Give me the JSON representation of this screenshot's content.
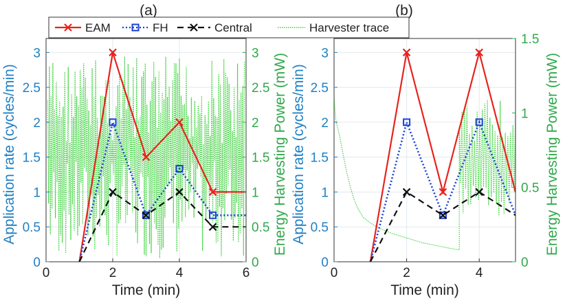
{
  "chart_data": [
    {
      "type": "line",
      "panel_title": "(a)",
      "xlabel": "Time (min)",
      "ylabel_left": "Application rate (cycles/min)",
      "ylabel_right": "Energy Harvesting Power (mW)",
      "xlim": [
        0,
        6
      ],
      "ylim_left": [
        0,
        3.2
      ],
      "ylim_right": [
        0,
        3.2
      ],
      "xticks": [
        0,
        2,
        4,
        6
      ],
      "yticks_left": [
        0,
        0.5,
        1,
        1.5,
        2,
        2.5,
        3
      ],
      "yticks_right": [
        0,
        0.5,
        1,
        1.5,
        2,
        2.5,
        3
      ],
      "ytick_labels_left": [
        "0",
        "0.5",
        "1",
        "1.5",
        "2",
        "2.5",
        "3"
      ],
      "ytick_labels_right": [
        "0",
        "0.5",
        "1",
        "1.5",
        "2",
        "2.5",
        "3"
      ],
      "grid": true,
      "series": [
        {
          "name": "EAM",
          "style": "solid-x",
          "color": "#e8221c",
          "x": [
            1,
            2,
            3,
            4,
            5,
            6
          ],
          "y": [
            0,
            3,
            1.5,
            2,
            1,
            1
          ]
        },
        {
          "name": "FH",
          "style": "dotted-square",
          "color": "#1a3fd6",
          "x": [
            1,
            2,
            3,
            4,
            5,
            6
          ],
          "y": [
            0,
            2,
            0.667,
            1.333,
            0.667,
            0.667
          ]
        },
        {
          "name": "Central",
          "style": "dashed-x",
          "color": "#111111",
          "x": [
            1,
            2,
            3,
            4,
            5,
            6
          ],
          "y": [
            0,
            1,
            0.667,
            1,
            0.5,
            0.5
          ]
        }
      ],
      "harvester_trace": {
        "name": "Harvester trace",
        "color": "#3fd13f",
        "kind": "oscillating",
        "t_start": 0.05,
        "t_end": 5.95,
        "min_mw": 0.05,
        "max_mw": 2.95
      }
    },
    {
      "type": "line",
      "panel_title": "(b)",
      "xlabel": "Time (min)",
      "ylabel_left": "Application rate (cycles/min)",
      "ylabel_right": "Energy Harvesting Power (mW)",
      "xlim": [
        0,
        5
      ],
      "ylim_left": [
        0,
        3.2
      ],
      "ylim_right": [
        0,
        1.5
      ],
      "xticks": [
        0,
        2,
        4
      ],
      "yticks_left": [
        0,
        0.5,
        1,
        1.5,
        2,
        2.5,
        3
      ],
      "yticks_right": [
        0,
        0.5,
        1,
        1.5
      ],
      "ytick_labels_left": [
        "0",
        "0.5",
        "1",
        "1.5",
        "2",
        "2.5",
        "3"
      ],
      "ytick_labels_right": [
        "0",
        "0.5",
        "1",
        "1.5"
      ],
      "grid": true,
      "series": [
        {
          "name": "EAM",
          "style": "solid-x",
          "color": "#e8221c",
          "x": [
            1,
            2,
            3,
            4,
            5
          ],
          "y": [
            0,
            3,
            1,
            3,
            1
          ]
        },
        {
          "name": "FH",
          "style": "dotted-square",
          "color": "#1a3fd6",
          "x": [
            1,
            2,
            3,
            4,
            5
          ],
          "y": [
            0,
            2,
            0.667,
            2,
            0.667
          ]
        },
        {
          "name": "Central",
          "style": "dashed-x",
          "color": "#111111",
          "x": [
            1,
            2,
            3,
            4,
            5
          ],
          "y": [
            0,
            1,
            0.667,
            1,
            0.667
          ]
        }
      ],
      "harvester_trace": {
        "name": "Harvester trace",
        "color": "#3fd13f",
        "kind": "decay-then-burst",
        "points_mw": [
          [
            0.0,
            1.1
          ],
          [
            0.05,
            0.95
          ],
          [
            0.15,
            0.85
          ],
          [
            0.25,
            0.72
          ],
          [
            0.35,
            0.6
          ],
          [
            0.45,
            0.5
          ],
          [
            0.55,
            0.42
          ],
          [
            0.65,
            0.36
          ],
          [
            0.8,
            0.3
          ],
          [
            1.0,
            0.26
          ],
          [
            1.3,
            0.22
          ],
          [
            1.6,
            0.19
          ],
          [
            2.0,
            0.16
          ],
          [
            2.4,
            0.13
          ],
          [
            2.8,
            0.11
          ],
          [
            3.2,
            0.09
          ],
          [
            3.45,
            0.08
          ]
        ],
        "burst_start": 3.45,
        "burst_end": 5.0,
        "burst_min_mw": 0.3,
        "burst_max_mw": 1.1
      }
    }
  ],
  "legend": {
    "items": [
      {
        "label": "EAM",
        "color": "#e8221c",
        "style": "solid-x"
      },
      {
        "label": "FH",
        "color": "#1a3fd6",
        "style": "dotted-square"
      },
      {
        "label": "Central",
        "color": "#111111",
        "style": "dashed-x"
      },
      {
        "label": "Harvester trace",
        "color": "#3fd13f",
        "style": "dotted"
      }
    ]
  },
  "colors": {
    "left_axis": "#1f7fc4",
    "right_axis": "#2fa84a",
    "grid": "#e2e8ee",
    "axes": "#333333"
  }
}
